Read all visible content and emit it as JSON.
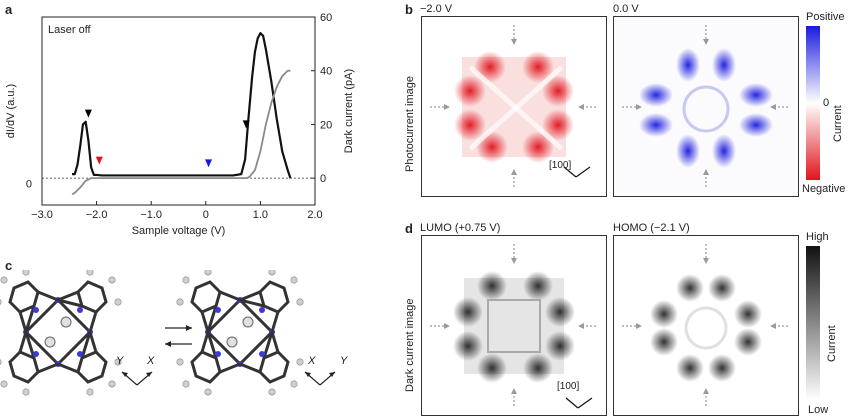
{
  "panels": {
    "a": {
      "letter": "a",
      "note": "Laser off"
    },
    "b": {
      "letter": "b",
      "left_title": "−2.0 V",
      "right_title": "0.0 V",
      "row_label": "Photocurrent image",
      "direction": "[100]",
      "colorbar": {
        "top": "Positive",
        "zero": "0",
        "mid": "Current",
        "bottom": "Negative",
        "top_color": "#1a1adf",
        "bottom_color": "#e0141c"
      }
    },
    "c": {
      "letter": "c",
      "axis1_left": "Y",
      "axis2_left": "X",
      "axis1_right": "X",
      "axis2_right": "Y"
    },
    "d": {
      "letter": "d",
      "left_title": "LUMO (+0.75 V)",
      "right_title": "HOMO (−2.1 V)",
      "row_label": "Dark current image",
      "direction": "[100]",
      "colorbar": {
        "top": "High",
        "mid": "Current",
        "bottom": "Low"
      }
    }
  },
  "chart_data": {
    "type": "line",
    "xlabel": "Sample voltage (V)",
    "ylabel_left": "dI/dV (a.u.)",
    "ylabel_right": "Dark current (pA)",
    "xlim": [
      -3.0,
      2.0
    ],
    "ylim_right": [
      -10,
      60
    ],
    "xticks": [
      "−3.0",
      "−2.0",
      "−1.0",
      "0",
      "1.0",
      "2.0"
    ],
    "yticks_right": [
      "0",
      "20",
      "40",
      "60"
    ],
    "ytick_left": "0",
    "series": [
      {
        "color": "#111111",
        "x": [
          -2.45,
          -2.4,
          -2.35,
          -2.3,
          -2.25,
          -2.2,
          -2.15,
          -2.1,
          -2.05,
          -2.0,
          -1.9,
          -1.5,
          -1.0,
          -0.5,
          0.0,
          0.5,
          0.65,
          0.72,
          0.78,
          0.85,
          0.9,
          0.95,
          1.0,
          1.05,
          1.1,
          1.2,
          1.3,
          1.4,
          1.5,
          1.55
        ],
        "y": [
          1.5,
          1.5,
          5,
          12,
          20,
          21,
          14,
          4,
          1.2,
          1.2,
          1,
          1,
          1,
          1,
          1,
          1,
          1.5,
          7,
          22,
          38,
          47,
          52,
          54,
          53,
          48,
          36,
          22,
          10,
          3,
          0
        ]
      },
      {
        "color": "#8a8a8a",
        "x": [
          -2.45,
          -2.4,
          -2.3,
          -2.2,
          -2.1,
          -2.0,
          -1.5,
          -1.0,
          -0.5,
          0.0,
          0.5,
          0.75,
          0.8,
          0.9,
          1.0,
          1.1,
          1.2,
          1.3,
          1.4,
          1.5,
          1.55
        ],
        "y": [
          -6,
          -5.5,
          -3.5,
          -1,
          0,
          0,
          0,
          0,
          0,
          0,
          0,
          0,
          0.5,
          3,
          10,
          20,
          28,
          34,
          38,
          40,
          40
        ]
      }
    ],
    "markers": [
      {
        "x": -2.15,
        "y": 24,
        "color": "#000000"
      },
      {
        "x": -1.95,
        "y": 6.5,
        "color": "#e0141c"
      },
      {
        "x": 0.05,
        "y": 5.5,
        "color": "#1a1adf"
      },
      {
        "x": 0.74,
        "y": 20,
        "color": "#000000"
      }
    ]
  }
}
